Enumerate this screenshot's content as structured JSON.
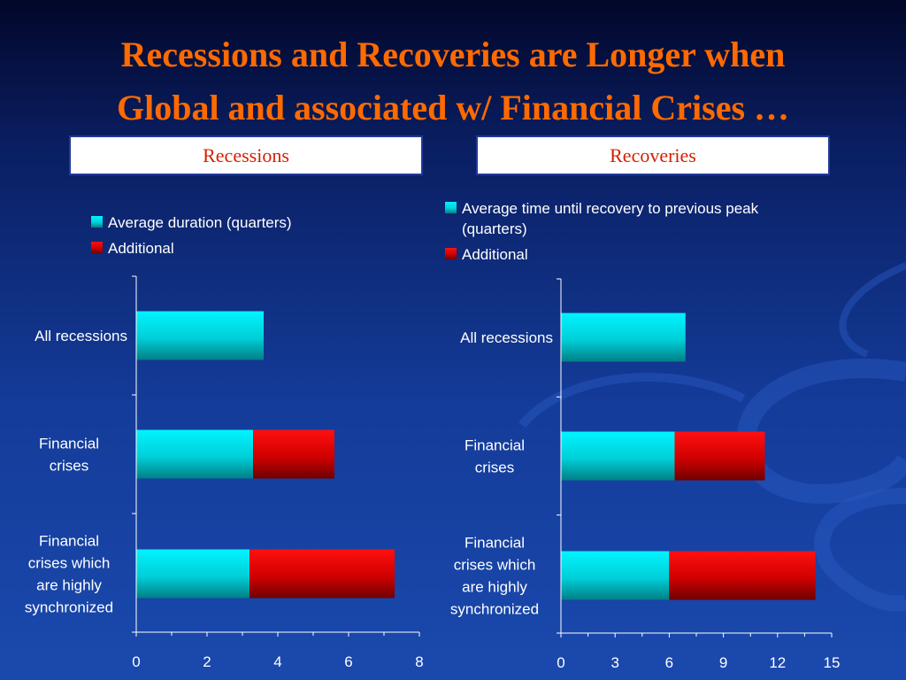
{
  "title": {
    "line1": "Recessions and Recoveries are Longer when",
    "line2": "Global and associated w/ Financial Crises …"
  },
  "sections": {
    "left": "Recessions",
    "right": "Recoveries"
  },
  "colors": {
    "title": "#ff6a00",
    "section_text": "#d61f00",
    "cyan_series": "#00e5f0",
    "red_series": "#e10000",
    "text": "#ffffff"
  },
  "chart_data": [
    {
      "type": "bar",
      "orientation": "horizontal",
      "stacked": true,
      "categories": [
        [
          "All recessions"
        ],
        [
          "Financial",
          "crises"
        ],
        [
          "Financial",
          "crises which",
          "are highly",
          "synchronized"
        ]
      ],
      "series": [
        {
          "name": "Average duration (quarters)",
          "legend_lines": [
            "Average duration (quarters)"
          ],
          "color": "#00e5f0",
          "values": [
            3.6,
            3.3,
            3.2
          ]
        },
        {
          "name": "Additional",
          "legend_lines": [
            "Additional"
          ],
          "color": "#e10000",
          "values": [
            0,
            2.3,
            4.1
          ]
        }
      ],
      "xlim": [
        0,
        8
      ],
      "xticks": [
        0,
        2,
        4,
        6,
        8
      ],
      "legend": "top"
    },
    {
      "type": "bar",
      "orientation": "horizontal",
      "stacked": true,
      "categories": [
        [
          "All recessions"
        ],
        [
          "Financial",
          "crises"
        ],
        [
          "Financial",
          "crises which",
          "are highly",
          "synchronized"
        ]
      ],
      "series": [
        {
          "name": "Average time until recovery to previous peak (quarters)",
          "legend_lines": [
            "Average time until recovery to previous peak",
            "(quarters)"
          ],
          "color": "#00e5f0",
          "values": [
            6.9,
            6.3,
            6.0
          ]
        },
        {
          "name": "Additional",
          "legend_lines": [
            "Additional"
          ],
          "color": "#e10000",
          "values": [
            0,
            5.0,
            8.1
          ]
        }
      ],
      "xlim": [
        0,
        15
      ],
      "xticks": [
        0,
        3,
        6,
        9,
        12,
        15
      ],
      "legend": "top"
    }
  ]
}
